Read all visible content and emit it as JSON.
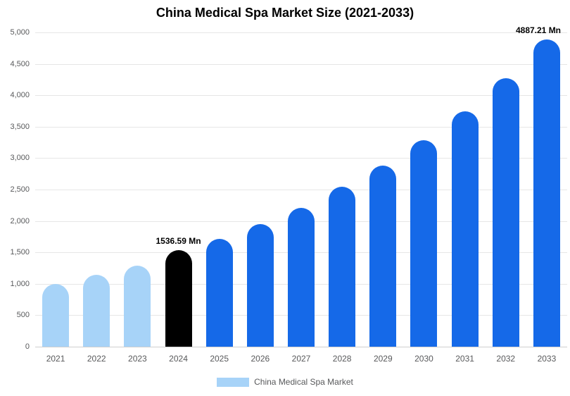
{
  "chart_data": {
    "type": "bar",
    "title": "China Medical Spa Market Size (2021-2033)",
    "xlabel": "",
    "ylabel": "",
    "ylim": [
      0,
      5000
    ],
    "ytick_step": 500,
    "ytick_labels": [
      "0",
      "500",
      "1,000",
      "1,500",
      "2,000",
      "2,500",
      "3,000",
      "3,500",
      "4,000",
      "4,500",
      "5,000"
    ],
    "grid": true,
    "legend_position": "bottom",
    "categories": [
      "2021",
      "2022",
      "2023",
      "2024",
      "2025",
      "2026",
      "2027",
      "2028",
      "2029",
      "2030",
      "2031",
      "2032",
      "2033"
    ],
    "series": [
      {
        "name": "China Medical Spa Market",
        "values": [
          1000,
          1140,
          1290,
          1536.59,
          1710,
          1950,
          2210,
          2540,
          2880,
          3290,
          3750,
          4270,
          4887.21
        ],
        "bar_colors": [
          "#A7D3F8",
          "#A7D3F8",
          "#A7D3F8",
          "#000000",
          "#1569E8",
          "#1569E8",
          "#1569E8",
          "#1569E8",
          "#1569E8",
          "#1569E8",
          "#1569E8",
          "#1569E8",
          "#1569E8"
        ]
      }
    ],
    "annotations": [
      {
        "category": "2024",
        "text": "1536.59 Mn"
      },
      {
        "category": "2033",
        "text": "4887.21 Mn"
      }
    ]
  },
  "legend": {
    "label": "China Medical Spa Market",
    "swatch_color": "#A7D3F8"
  },
  "colors": {
    "light_blue": "#A7D3F8",
    "blue": "#1569E8",
    "black": "#000000",
    "axis_text": "#58595b",
    "gridline": "#e6e6e6"
  }
}
